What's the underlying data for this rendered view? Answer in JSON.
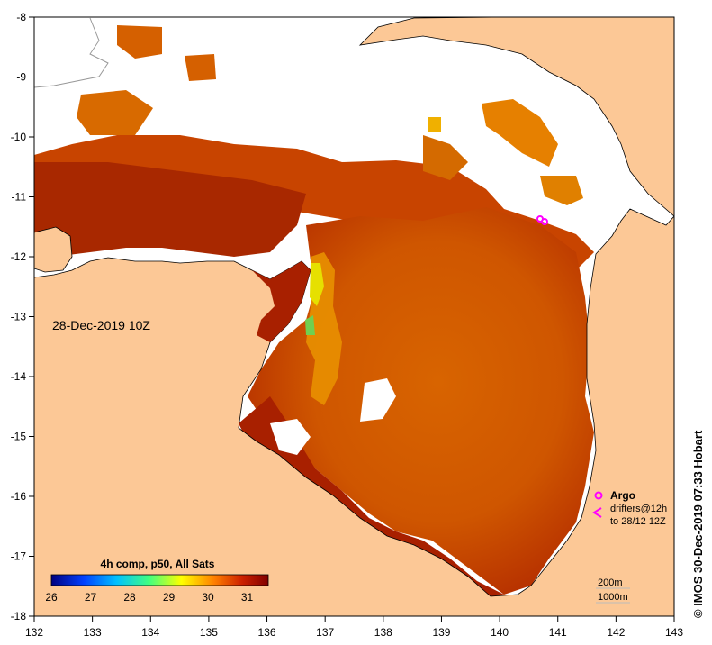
{
  "timestamp": "28-Dec-2019 10Z",
  "colorbar": {
    "title": "4h comp, p50, All Sats",
    "ticks": [
      "26",
      "27",
      "28",
      "29",
      "30",
      "31"
    ],
    "colors": [
      "#000080",
      "#0040ff",
      "#00c0ff",
      "#40ff80",
      "#ffff00",
      "#ff8000",
      "#cc2000",
      "#800000"
    ]
  },
  "axes": {
    "x_ticks": [
      "132",
      "133",
      "134",
      "135",
      "136",
      "137",
      "138",
      "139",
      "140",
      "141",
      "142",
      "143"
    ],
    "y_ticks": [
      "-8",
      "-9",
      "-10",
      "-11",
      "-12",
      "-13",
      "-14",
      "-15",
      "-16",
      "-17",
      "-18"
    ]
  },
  "legend": {
    "argo_label": "Argo",
    "drifters_label": "drifters@12h",
    "drifters_to": "to 28/12 12Z",
    "argo_color": "#ff00ff"
  },
  "scale": {
    "contour_200": "200m",
    "contour_1000": "1000m"
  },
  "credit": "© IMOS 30-Dec-2019 07:33 Hobart",
  "colors": {
    "land": "#fcc896",
    "no_data": "#ffffff",
    "sst_warm": "#c03000",
    "sst_mid": "#e07000",
    "sst_cool": "#f0b000"
  }
}
